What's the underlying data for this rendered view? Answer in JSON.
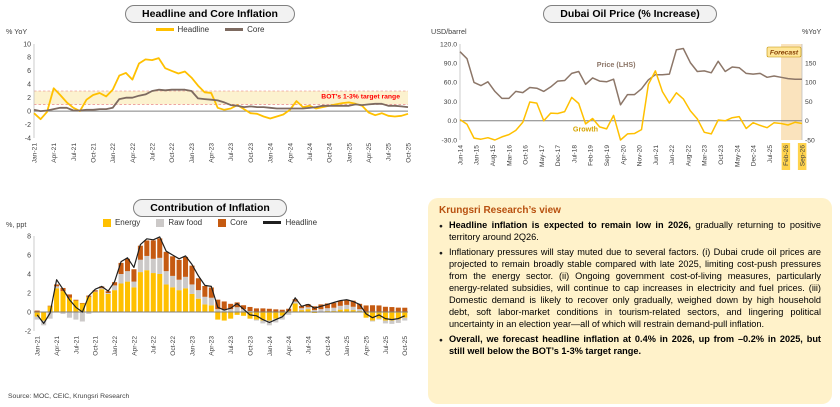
{
  "source": "Source: MOC, CEIC, Krungsri Research",
  "research_view": {
    "title": "Krungsri Research’s view",
    "bullets": [
      {
        "segments": [
          {
            "text": "Headline inflation is expected to remain low in 2026,",
            "bold": true
          },
          {
            "text": " gradually returning to positive territory around 2Q26.",
            "bold": false
          }
        ]
      },
      {
        "segments": [
          {
            "text": "Inflationary pressures will stay muted due to several factors. (i) Dubai crude oil prices are projected to remain broadly stable compared with late 2025, limiting cost-push pressures from the energy sector. (ii) Ongoing government cost-of-living measures, particularly energy-related subsidies, will continue to cap increases in electricity and fuel prices. (iii) Domestic demand is likely to recover only gradually, weighed down by high household debt, soft labor-market conditions in tourism-related sectors, and lingering political uncertainty in an election year—all of which will restrain demand-pull inflation.",
            "bold": false
          }
        ]
      },
      {
        "segments": [
          {
            "text": "Overall, we forecast headline inflation at 0.4% in 2026, up from –0.2% in 2025, but still well below the BOT’s 1-3% target range.",
            "bold": true
          }
        ]
      }
    ]
  },
  "chart_data": [
    {
      "type": "line",
      "title": "Headline and Core Inflation",
      "ylabel": "% YoY",
      "ylim": [
        -4,
        10
      ],
      "yticks": [
        10,
        8,
        6,
        4,
        2,
        0,
        -2,
        -4
      ],
      "months_per_tick": 3,
      "x_tick_labels": [
        "Jan-21",
        "Apr-21",
        "Jul-21",
        "Oct-21",
        "Jan-22",
        "Apr-22",
        "Jul-22",
        "Oct-22",
        "Jan-23",
        "Apr-23",
        "Jul-23",
        "Oct-23",
        "Jan-24",
        "Apr-24",
        "Jul-24",
        "Oct-24",
        "Jan-25",
        "Apr-25",
        "Jul-25",
        "Oct-25"
      ],
      "target_band": [
        1,
        3
      ],
      "band_color": "#FCF2CF",
      "band_edge_color": "#E57373",
      "annotation": "BOT’s 1-3% target range",
      "annotation_color": "#FF0000",
      "legend": [
        {
          "label": "Headline",
          "color": "#FFC000",
          "type": "line"
        },
        {
          "label": "Core",
          "color": "#7D6A60",
          "type": "line"
        }
      ],
      "series": [
        {
          "name": "Headline",
          "color": "#FFC000",
          "values": [
            -0.3,
            -1.2,
            -0.1,
            3.4,
            2.4,
            1.3,
            0.5,
            0.0,
            1.7,
            2.4,
            2.7,
            2.2,
            3.2,
            5.3,
            5.7,
            4.7,
            7.1,
            7.7,
            7.6,
            7.9,
            6.4,
            6.0,
            5.6,
            5.9,
            5.0,
            3.8,
            2.8,
            2.7,
            0.5,
            0.2,
            0.4,
            0.9,
            0.3,
            -0.3,
            -0.4,
            -0.8,
            -1.1,
            -0.8,
            -0.5,
            0.2,
            1.5,
            0.6,
            0.8,
            0.4,
            0.6,
            0.8,
            1.0,
            1.2,
            1.3,
            1.1,
            0.8,
            -0.2,
            -0.6,
            -0.3,
            -0.7,
            -0.8,
            -0.7,
            -0.4
          ]
        },
        {
          "name": "Core",
          "color": "#7D6A60",
          "values": [
            0.2,
            0.0,
            0.1,
            0.3,
            0.5,
            0.5,
            0.1,
            0.1,
            0.2,
            0.2,
            0.3,
            0.3,
            0.5,
            1.8,
            2.0,
            2.0,
            2.3,
            2.5,
            3.0,
            3.2,
            3.1,
            3.2,
            3.2,
            3.2,
            3.0,
            1.9,
            1.8,
            1.7,
            1.6,
            1.3,
            0.9,
            0.8,
            0.6,
            0.7,
            0.6,
            0.6,
            0.5,
            0.4,
            0.4,
            0.4,
            0.4,
            0.4,
            0.5,
            0.6,
            0.8,
            0.8,
            0.8,
            0.8,
            0.8,
            1.0,
            0.9,
            1.0,
            1.1,
            1.1,
            0.8,
            0.8,
            0.7,
            0.6
          ]
        }
      ]
    },
    {
      "type": "line-dual-axis",
      "title": "Dubai Oil Price (% Increase)",
      "ylabel_left": "USD/barrel",
      "ylabel_right": "%YoY",
      "ylim_left": [
        -30,
        120
      ],
      "yticks_left": [
        120,
        90,
        60,
        30,
        0,
        -30
      ],
      "ylim_right": [
        -50,
        200
      ],
      "yticks_right": [
        150,
        100,
        50,
        0,
        -50
      ],
      "total_months": 147,
      "tick_month_step": 7,
      "data_month_step": 3,
      "x_tick_labels": [
        "Jun-14",
        "Jan-15",
        "Aug-15",
        "Mar-16",
        "Oct-16",
        "May-17",
        "Dec-17",
        "Jul-18",
        "Feb-19",
        "Sep-19",
        "Apr-20",
        "Nov-20",
        "Jun-21",
        "Jan-22",
        "Aug-22",
        "Mar-23",
        "Oct-23",
        "May-24",
        "Dec-24",
        "Jul-25",
        "Feb-26",
        "Sep-26"
      ],
      "forecast_start_month": 138,
      "forecast_label": "Forecast",
      "forecast_band_color": "#FAE3BD",
      "forecast_tick_highlight": "#FFD34D",
      "forecast_chip_bg": "#FFE699",
      "forecast_chip_border": "#BF8F00",
      "forecast_label_color": "#833C00",
      "growth_label_color": "#D6A400",
      "series": [
        {
          "name": "Price (LHS)",
          "axis": "left",
          "color": "#8C7668",
          "values": [
            108,
            97,
            60,
            55,
            61,
            46,
            35,
            35,
            46,
            44,
            52,
            51,
            46,
            53,
            62,
            63,
            74,
            77,
            57,
            67,
            62,
            61,
            65,
            25,
            41,
            41,
            50,
            64,
            72,
            72,
            73,
            111,
            113,
            91,
            77,
            78,
            75,
            93,
            77,
            84,
            83,
            74,
            73,
            74,
            68,
            70,
            68,
            66,
            65,
            65
          ]
        },
        {
          "name": "Growth",
          "axis": "right",
          "color": "#FFC000",
          "values": [
            3,
            -9,
            -45,
            -48,
            -44,
            -50,
            -42,
            -36,
            -25,
            -4,
            49,
            46,
            0,
            20,
            19,
            24,
            61,
            45,
            -8,
            6,
            -16,
            -21,
            14,
            -50,
            -34,
            -33,
            -23,
            95,
            130,
            76,
            46,
            73,
            57,
            26,
            5,
            -30,
            -34,
            2,
            0,
            8,
            11,
            -20,
            -5,
            -12,
            -18,
            -5,
            -7,
            -11,
            -4,
            -7
          ]
        }
      ]
    },
    {
      "type": "stacked-bar-line",
      "title": "Contribution of Inflation",
      "ylabel": "%, ppt",
      "ylim": [
        -2,
        8
      ],
      "yticks": [
        8,
        6,
        4,
        2,
        0,
        -2
      ],
      "months_per_tick": 3,
      "x_tick_labels": [
        "Jan-21",
        "Apr-21",
        "Jul-21",
        "Oct-21",
        "Jan-22",
        "Apr-22",
        "Jul-22",
        "Oct-22",
        "Jan-23",
        "Apr-23",
        "Jul-23",
        "Oct-23",
        "Jan-24",
        "Apr-24",
        "Jul-24",
        "Oct-24",
        "Jan-25",
        "Apr-25",
        "Jul-25",
        "Oct-25"
      ],
      "legend": [
        {
          "label": "Energy",
          "color": "#FFC000",
          "type": "box"
        },
        {
          "label": "Raw food",
          "color": "#CCC9C8",
          "type": "box"
        },
        {
          "label": "Core",
          "color": "#C55A11",
          "type": "box"
        },
        {
          "label": "Headline",
          "color": "#1F1F1F",
          "type": "line"
        }
      ],
      "bar_series": [
        {
          "name": "Energy",
          "color": "#FFC000",
          "values": [
            -0.5,
            -0.9,
            0.6,
            2.5,
            2.2,
            1.5,
            1.2,
            0.9,
            1.6,
            2.1,
            2.4,
            1.9,
            2.3,
            3.0,
            3.2,
            2.6,
            4.2,
            4.4,
            4.1,
            4.0,
            2.9,
            2.6,
            2.3,
            2.5,
            1.9,
            1.4,
            0.8,
            0.7,
            -0.8,
            -0.9,
            -0.7,
            -0.3,
            -0.4,
            -0.7,
            -0.8,
            -0.9,
            -0.9,
            -0.7,
            -0.4,
            0.1,
            0.9,
            0.2,
            0.3,
            -0.1,
            0.0,
            0.1,
            0.1,
            0.25,
            0.3,
            0.2,
            0.1,
            -0.6,
            -0.9,
            -0.7,
            -0.9,
            -0.9,
            -0.8,
            -0.6
          ]
        },
        {
          "name": "Raw food",
          "color": "#CCC9C8",
          "values": [
            -0.3,
            -0.5,
            -0.7,
            0.2,
            -0.2,
            -0.6,
            -0.8,
            -1.0,
            -0.2,
            0.05,
            0.1,
            0.1,
            0.5,
            1.0,
            1.1,
            0.6,
            1.3,
            1.5,
            1.5,
            1.7,
            1.4,
            1.2,
            1.1,
            1.2,
            1.0,
            0.9,
            0.8,
            0.8,
            0.3,
            0.25,
            0.3,
            0.5,
            0.3,
            0.1,
            -0.1,
            -0.3,
            -0.5,
            -0.4,
            -0.4,
            -0.3,
            0.2,
            0.2,
            0.2,
            0.2,
            0.3,
            0.3,
            0.35,
            0.4,
            0.45,
            0.35,
            0.2,
            0.05,
            -0.1,
            -0.1,
            -0.3,
            -0.35,
            -0.35,
            -0.3
          ]
        },
        {
          "name": "Core",
          "color": "#C55A11",
          "values": [
            0.15,
            0.03,
            0.06,
            0.2,
            0.33,
            0.35,
            0.09,
            0.05,
            0.13,
            0.14,
            0.19,
            0.19,
            0.34,
            1.17,
            1.3,
            1.3,
            1.48,
            1.63,
            1.94,
            2.05,
            2.03,
            2.06,
            2.09,
            2.1,
            1.98,
            1.25,
            1.14,
            1.08,
            1.0,
            0.86,
            0.56,
            0.51,
            0.41,
            0.43,
            0.38,
            0.38,
            0.34,
            0.28,
            0.24,
            0.24,
            0.25,
            0.23,
            0.34,
            0.4,
            0.5,
            0.5,
            0.52,
            0.51,
            0.54,
            0.64,
            0.56,
            0.64,
            0.71,
            0.69,
            0.55,
            0.52,
            0.46,
            0.45
          ]
        }
      ],
      "line_series": {
        "name": "Headline",
        "color": "#1F1F1F",
        "values": [
          -0.3,
          -1.2,
          -0.1,
          3.4,
          2.4,
          1.3,
          0.5,
          0.0,
          1.7,
          2.4,
          2.7,
          2.2,
          3.2,
          5.3,
          5.7,
          4.7,
          7.1,
          7.7,
          7.6,
          7.9,
          6.4,
          6.0,
          5.6,
          5.9,
          5.0,
          3.8,
          2.8,
          2.7,
          0.5,
          0.2,
          0.4,
          0.9,
          0.3,
          -0.3,
          -0.4,
          -0.8,
          -1.1,
          -0.8,
          -0.5,
          0.2,
          1.5,
          0.6,
          0.8,
          0.4,
          0.6,
          0.8,
          1.0,
          1.2,
          1.3,
          1.1,
          0.8,
          -0.2,
          -0.6,
          -0.3,
          -0.7,
          -0.8,
          -0.7,
          -0.4
        ]
      }
    }
  ]
}
